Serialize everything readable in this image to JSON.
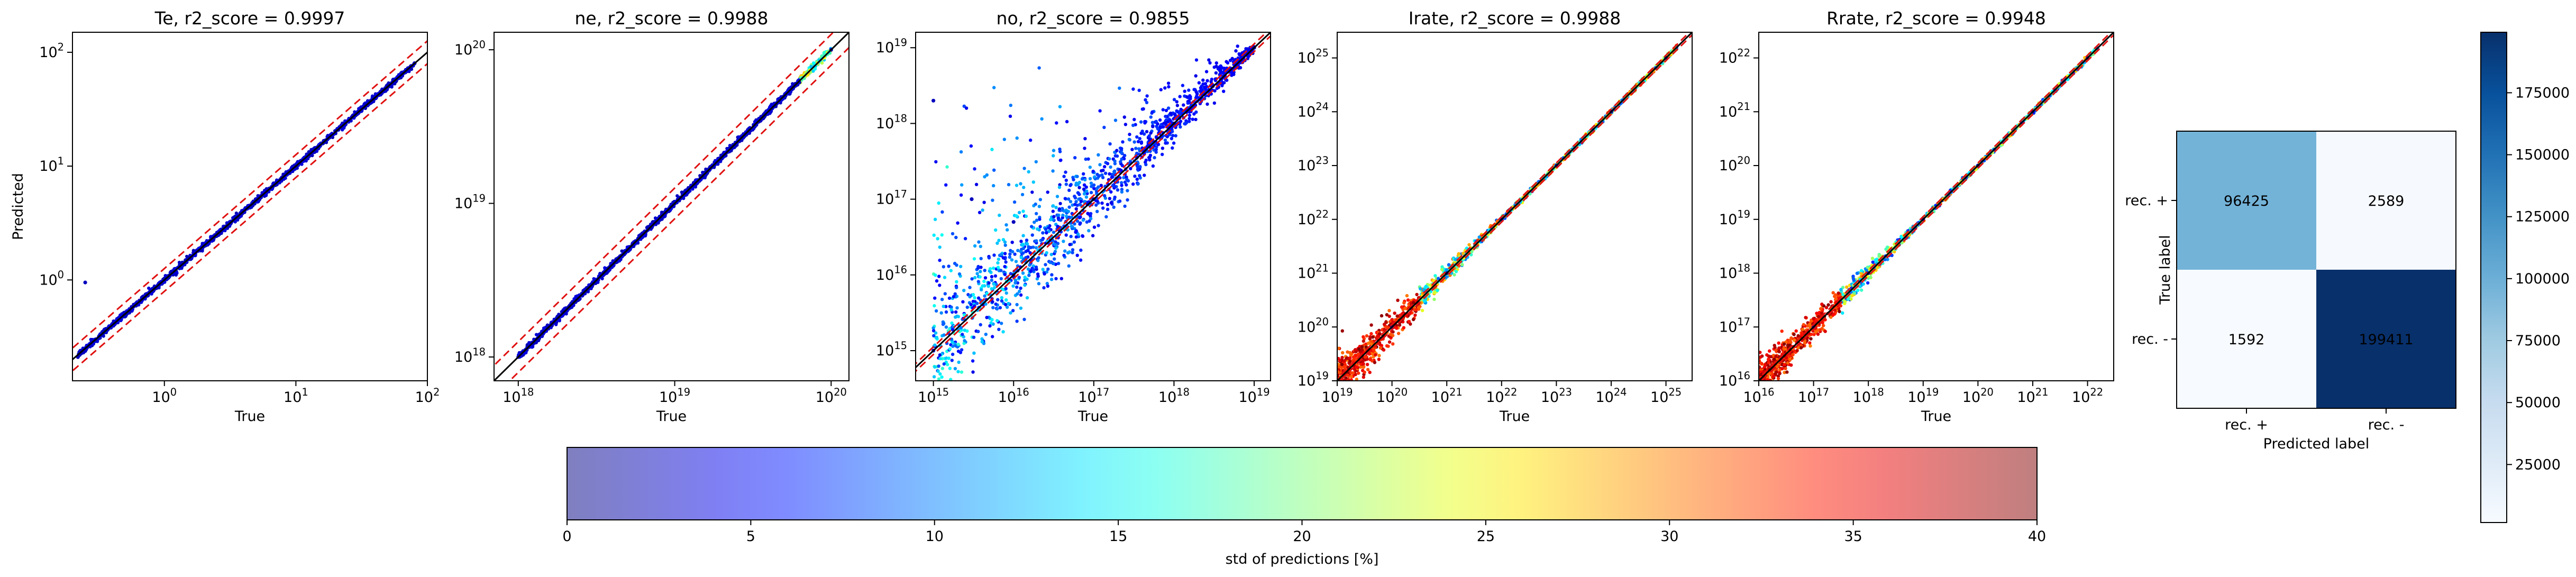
{
  "figure": {
    "panels": [
      {
        "title": "Te, r2_score = 0.9997",
        "xlabel": "True",
        "ylabel": "Predicted",
        "x_ticks": [
          "10^0",
          "10^1",
          "10^2"
        ],
        "y_ticks": [
          "10^0",
          "10^1",
          "10^2"
        ]
      },
      {
        "title": "ne, r2_score = 0.9988",
        "xlabel": "True",
        "ylabel": "",
        "x_ticks": [
          "10^18",
          "10^19",
          "10^20"
        ],
        "y_ticks": [
          "10^18",
          "10^19",
          "10^20"
        ]
      },
      {
        "title": "no, r2_score = 0.9855",
        "xlabel": "True",
        "ylabel": "",
        "x_ticks": [
          "10^15",
          "10^16",
          "10^17",
          "10^18",
          "10^19"
        ],
        "y_ticks": [
          "10^15",
          "10^16",
          "10^17",
          "10^18",
          "10^19"
        ]
      },
      {
        "title": "Irate, r2_score = 0.9988",
        "xlabel": "True",
        "ylabel": "",
        "x_ticks": [
          "10^19",
          "10^20",
          "10^21",
          "10^22",
          "10^23",
          "10^24",
          "10^25"
        ],
        "y_ticks": [
          "10^19",
          "10^20",
          "10^21",
          "10^22",
          "10^23",
          "10^24",
          "10^25"
        ]
      },
      {
        "title": "Rrate, r2_score = 0.9948",
        "xlabel": "True",
        "ylabel": "",
        "x_ticks": [
          "10^16",
          "10^17",
          "10^18",
          "10^19",
          "10^20",
          "10^21",
          "10^22"
        ],
        "y_ticks": [
          "10^16",
          "10^17",
          "10^18",
          "10^19",
          "10^20",
          "10^21",
          "10^22"
        ]
      }
    ],
    "std_colorbar": {
      "label": "std of predictions [%]",
      "ticks": [
        "0",
        "5",
        "10",
        "15",
        "20",
        "25",
        "30",
        "35",
        "40"
      ]
    },
    "confusion": {
      "xlabel": "Predicted label",
      "ylabel": "True label",
      "x_ticks": [
        "rec. +",
        "rec. -"
      ],
      "y_ticks": [
        "rec. +",
        "rec. -"
      ],
      "cell_text": [
        "96425",
        "2589",
        "1592",
        "199411"
      ]
    },
    "count_colorbar": {
      "ticks": [
        "25000",
        "50000",
        "75000",
        "100000",
        "125000",
        "150000",
        "175000"
      ]
    }
  },
  "chart_data": [
    {
      "type": "scatter",
      "title": "Te, r2_score = 0.9997",
      "xlabel": "True",
      "ylabel": "Predicted",
      "xscale": "log",
      "yscale": "log",
      "xlim": [
        0.2,
        100
      ],
      "ylim": [
        0.13,
        150
      ],
      "identity_line": true,
      "error_band_lines": "red dashed",
      "color_by": "std of predictions [%]",
      "points": [
        [
          0.22,
          0.21
        ],
        [
          0.3,
          0.3
        ],
        [
          0.5,
          0.5
        ],
        [
          1,
          1
        ],
        [
          2,
          2
        ],
        [
          5,
          5
        ],
        [
          10,
          10
        ],
        [
          20,
          20
        ],
        [
          50,
          50
        ],
        [
          80,
          80
        ],
        [
          0.25,
          0.95
        ]
      ]
    },
    {
      "type": "scatter",
      "title": "ne, r2_score = 0.9988",
      "xlabel": "True",
      "xscale": "log",
      "yscale": "log",
      "xlim": [
        7e+17,
        1.3e+20
      ],
      "ylim": [
        7e+17,
        1.3e+20
      ],
      "identity_line": true,
      "error_band_lines": "red dashed",
      "color_by": "std of predictions [%]",
      "points": [
        [
          1e+18,
          1e+18
        ],
        [
          3e+18,
          3e+18
        ],
        [
          1e+19,
          1e+19
        ],
        [
          3e+19,
          3e+19
        ],
        [
          1e+20,
          1e+20
        ]
      ]
    },
    {
      "type": "scatter",
      "title": "no, r2_score = 0.9855",
      "xlabel": "True",
      "xscale": "log",
      "yscale": "log",
      "xlim": [
        600000000000000.0,
        1.6e+19
      ],
      "ylim": [
        400000000000000.0,
        1.6e+19
      ],
      "identity_line": true,
      "error_band_lines": "red dashed",
      "color_by": "std of predictions [%]",
      "points": [
        [
          1000000000000000.0,
          1000000000000000.0
        ],
        [
          1e+16,
          1e+16
        ],
        [
          1e+17,
          1e+17
        ],
        [
          1e+18,
          1e+18
        ],
        [
          1e+19,
          1e+19
        ],
        [
          1000000000000000.0,
          2e+18
        ],
        [
          3000000000000000.0,
          1e+17
        ],
        [
          1e+16,
          5e+16
        ]
      ]
    },
    {
      "type": "scatter",
      "title": "Irate, r2_score = 0.9988",
      "xlabel": "True",
      "xscale": "log",
      "yscale": "log",
      "xlim": [
        1e+19,
        3e+25
      ],
      "ylim": [
        1e+19,
        3e+25
      ],
      "identity_line": true,
      "error_band_lines": "red dashed",
      "color_by": "std of predictions [%]",
      "points": [
        [
          1e+19,
          1e+19
        ],
        [
          1e+20,
          1e+20
        ],
        [
          1e+21,
          1e+21
        ],
        [
          1e+22,
          1e+22
        ],
        [
          1e+23,
          1e+23
        ],
        [
          1e+24,
          1e+24
        ],
        [
          1e+25,
          1e+25
        ]
      ]
    },
    {
      "type": "scatter",
      "title": "Rrate, r2_score = 0.9948",
      "xlabel": "True",
      "xscale": "log",
      "yscale": "log",
      "xlim": [
        1e+16,
        3e+22
      ],
      "ylim": [
        1e+16,
        3e+22
      ],
      "identity_line": true,
      "error_band_lines": "red dashed",
      "color_by": "std of predictions [%]",
      "points": [
        [
          1e+16,
          1e+16
        ],
        [
          1e+17,
          1e+17
        ],
        [
          1e+18,
          1e+18
        ],
        [
          1e+19,
          1e+19
        ],
        [
          1e+20,
          1e+20
        ],
        [
          1e+21,
          1e+21
        ],
        [
          1e+22,
          1e+22
        ]
      ]
    },
    {
      "type": "heatmap",
      "xlabel": "Predicted label",
      "ylabel": "True label",
      "x_categories": [
        "rec. +",
        "rec. -"
      ],
      "y_categories": [
        "rec. +",
        "rec. -"
      ],
      "values": [
        [
          96425,
          2589
        ],
        [
          1592,
          199411
        ]
      ],
      "colormap": "Blues",
      "color_range": [
        1592,
        199411
      ]
    }
  ]
}
